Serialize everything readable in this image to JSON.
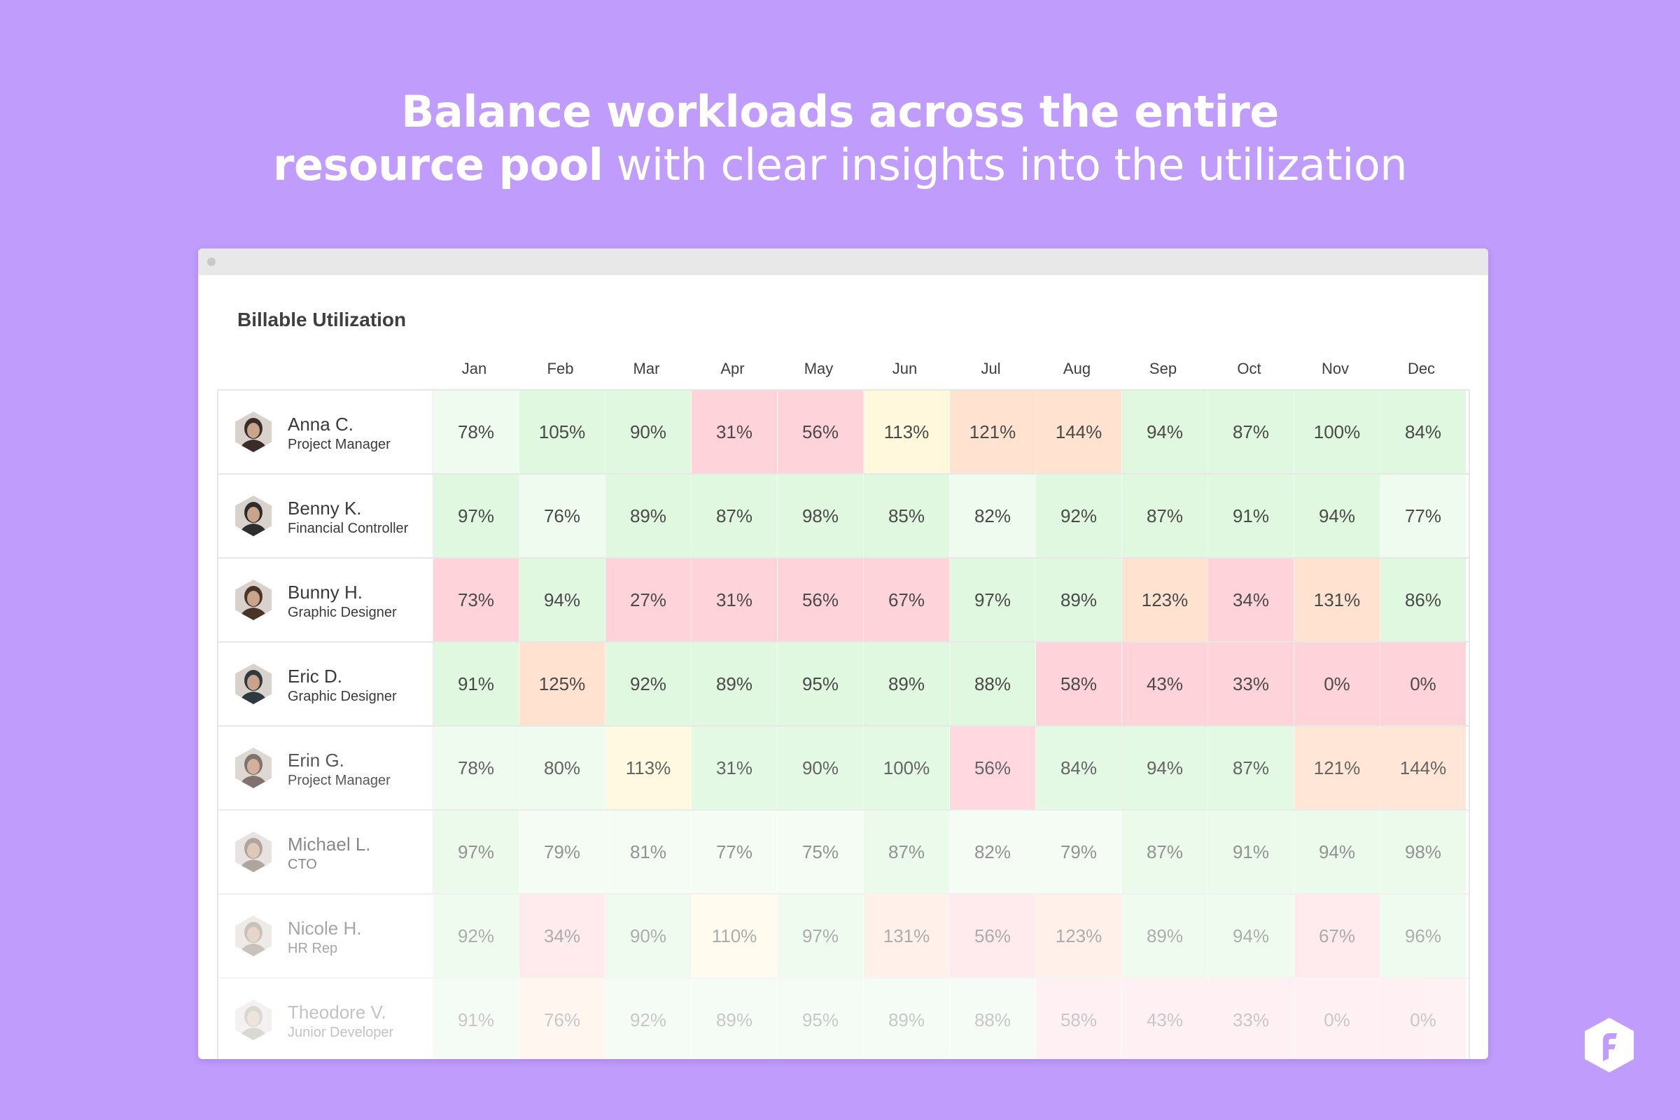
{
  "headline": {
    "line1": "Balance workloads across the entire",
    "line2_bold": "resource pool",
    "line2_rest": " with clear insights into the utilization"
  },
  "panel": {
    "title": "Billable Utilization"
  },
  "months": [
    "Jan",
    "Feb",
    "Mar",
    "Apr",
    "May",
    "Jun",
    "Jul",
    "Aug",
    "Sep",
    "Oct",
    "Nov",
    "Dec"
  ],
  "colors": {
    "background": "#c09cfc",
    "green": "#dff8df",
    "lightgreen": "#eefbee",
    "red": "#ffd3da",
    "orange": "#ffe2cf",
    "yellow": "#fff8dd",
    "logo": "#ffffff"
  },
  "people": [
    {
      "name": "Anna C.",
      "role": "Project Manager",
      "fade": 1.0,
      "avatar_color": "#3b2c2a",
      "values": [
        "78%",
        "105%",
        "90%",
        "31%",
        "56%",
        "113%",
        "121%",
        "144%",
        "94%",
        "87%",
        "100%",
        "84%"
      ],
      "colors": [
        "lightgreen",
        "green",
        "green",
        "red",
        "red",
        "yellow",
        "orange",
        "orange",
        "green",
        "green",
        "green",
        "green"
      ]
    },
    {
      "name": "Benny K.",
      "role": "Financial Controller",
      "fade": 1.0,
      "avatar_color": "#2d2d2d",
      "values": [
        "97%",
        "76%",
        "89%",
        "87%",
        "98%",
        "85%",
        "82%",
        "92%",
        "87%",
        "91%",
        "94%",
        "77%"
      ],
      "colors": [
        "green",
        "lightgreen",
        "green",
        "green",
        "green",
        "green",
        "lightgreen",
        "green",
        "green",
        "green",
        "green",
        "lightgreen"
      ]
    },
    {
      "name": "Bunny H.",
      "role": "Graphic Designer",
      "fade": 1.0,
      "avatar_color": "#4a3428",
      "values": [
        "73%",
        "94%",
        "27%",
        "31%",
        "56%",
        "67%",
        "97%",
        "89%",
        "123%",
        "34%",
        "131%",
        "86%"
      ],
      "colors": [
        "red",
        "green",
        "red",
        "red",
        "red",
        "red",
        "green",
        "green",
        "orange",
        "red",
        "orange",
        "green"
      ]
    },
    {
      "name": "Eric D.",
      "role": "Graphic Designer",
      "fade": 1.0,
      "avatar_color": "#2f3a40",
      "values": [
        "91%",
        "125%",
        "92%",
        "89%",
        "95%",
        "89%",
        "88%",
        "58%",
        "43%",
        "33%",
        "0%",
        "0%"
      ],
      "colors": [
        "green",
        "orange",
        "green",
        "green",
        "green",
        "green",
        "green",
        "red",
        "red",
        "red",
        "red",
        "red"
      ]
    },
    {
      "name": "Erin G.",
      "role": "Project Manager",
      "fade": 0.85,
      "avatar_color": "#6a5a55",
      "values": [
        "78%",
        "80%",
        "113%",
        "31%",
        "90%",
        "100%",
        "56%",
        "84%",
        "94%",
        "87%",
        "121%",
        "144%"
      ],
      "colors": [
        "lightgreen",
        "lightgreen",
        "yellow",
        "green",
        "green",
        "green",
        "red",
        "green",
        "green",
        "green",
        "orange",
        "orange"
      ]
    },
    {
      "name": "Michael L.",
      "role": "CTO",
      "fade": 0.6,
      "avatar_color": "#7a6a60",
      "values": [
        "97%",
        "79%",
        "81%",
        "77%",
        "75%",
        "87%",
        "82%",
        "79%",
        "87%",
        "91%",
        "94%",
        "98%"
      ],
      "colors": [
        "green",
        "lightgreen",
        "lightgreen",
        "lightgreen",
        "lightgreen",
        "green",
        "lightgreen",
        "lightgreen",
        "green",
        "green",
        "green",
        "green"
      ]
    },
    {
      "name": "Nicole H.",
      "role": "HR Rep",
      "fade": 0.45,
      "avatar_color": "#8a7a6a",
      "values": [
        "92%",
        "34%",
        "90%",
        "110%",
        "97%",
        "131%",
        "56%",
        "123%",
        "89%",
        "94%",
        "67%",
        "96%"
      ],
      "colors": [
        "green",
        "red",
        "green",
        "yellow",
        "green",
        "orange",
        "red",
        "orange",
        "green",
        "green",
        "red",
        "green"
      ]
    },
    {
      "name": "Theodore V.",
      "role": "Junior Developer",
      "fade": 0.3,
      "avatar_color": "#7a806a",
      "values": [
        "91%",
        "76%",
        "92%",
        "89%",
        "95%",
        "89%",
        "88%",
        "58%",
        "43%",
        "33%",
        "0%",
        "0%"
      ],
      "colors": [
        "green",
        "orange",
        "green",
        "green",
        "green",
        "green",
        "green",
        "red",
        "red",
        "red",
        "red",
        "red"
      ]
    }
  ]
}
